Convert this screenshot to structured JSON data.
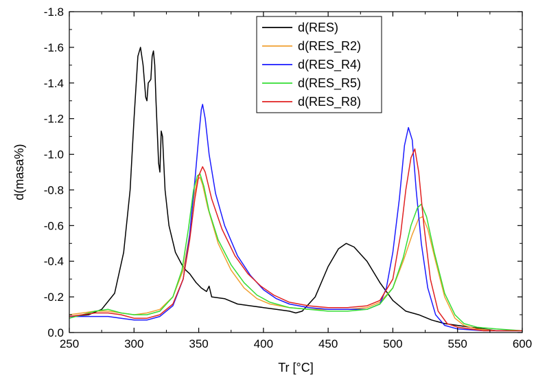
{
  "chart_data": {
    "type": "line",
    "xlabel": "Tr [°C]",
    "ylabel": "d(masa%)",
    "xlim": [
      250,
      600
    ],
    "ylim": [
      0.0,
      -1.8
    ],
    "y_axis_inverted": true,
    "grid": false,
    "legend_position": "top-center",
    "x_ticks": [
      250,
      300,
      350,
      400,
      450,
      500,
      550,
      600
    ],
    "x_tick_labels": [
      "250",
      "300",
      "350",
      "400",
      "450",
      "500",
      "550",
      "600"
    ],
    "y_ticks": [
      0,
      -0.2,
      -0.4,
      -0.6,
      -0.8,
      -1.0,
      -1.2,
      -1.4,
      -1.6,
      -1.8
    ],
    "y_tick_labels": [
      "0.0",
      "-0.2",
      "-0.4",
      "-0.6",
      "-0.8",
      "-1.0",
      "-1.2",
      "-1.4",
      "-1.6",
      "-1.8"
    ],
    "series": [
      {
        "name": "d(RES)",
        "color": "#000000",
        "points": [
          [
            250,
            -0.09
          ],
          [
            265,
            -0.1
          ],
          [
            275,
            -0.13
          ],
          [
            285,
            -0.22
          ],
          [
            292,
            -0.45
          ],
          [
            297,
            -0.8
          ],
          [
            300,
            -1.2
          ],
          [
            303,
            -1.55
          ],
          [
            305,
            -1.6
          ],
          [
            307,
            -1.5
          ],
          [
            309,
            -1.32
          ],
          [
            310,
            -1.3
          ],
          [
            311,
            -1.4
          ],
          [
            313,
            -1.42
          ],
          [
            314,
            -1.55
          ],
          [
            315,
            -1.58
          ],
          [
            316,
            -1.5
          ],
          [
            317,
            -1.3
          ],
          [
            319,
            -0.95
          ],
          [
            320,
            -0.9
          ],
          [
            321,
            -1.13
          ],
          [
            322,
            -1.1
          ],
          [
            324,
            -0.8
          ],
          [
            327,
            -0.6
          ],
          [
            332,
            -0.45
          ],
          [
            337,
            -0.38
          ],
          [
            340,
            -0.35
          ],
          [
            343,
            -0.33
          ],
          [
            348,
            -0.28
          ],
          [
            352,
            -0.25
          ],
          [
            356,
            -0.23
          ],
          [
            358,
            -0.26
          ],
          [
            360,
            -0.2
          ],
          [
            370,
            -0.19
          ],
          [
            380,
            -0.16
          ],
          [
            390,
            -0.15
          ],
          [
            400,
            -0.14
          ],
          [
            410,
            -0.13
          ],
          [
            420,
            -0.12
          ],
          [
            425,
            -0.11
          ],
          [
            430,
            -0.12
          ],
          [
            440,
            -0.2
          ],
          [
            450,
            -0.37
          ],
          [
            458,
            -0.47
          ],
          [
            464,
            -0.5
          ],
          [
            470,
            -0.48
          ],
          [
            480,
            -0.4
          ],
          [
            490,
            -0.28
          ],
          [
            500,
            -0.18
          ],
          [
            510,
            -0.12
          ],
          [
            520,
            -0.1
          ],
          [
            530,
            -0.07
          ],
          [
            540,
            -0.05
          ],
          [
            550,
            -0.04
          ],
          [
            560,
            -0.03
          ],
          [
            570,
            -0.02
          ],
          [
            580,
            -0.01
          ],
          [
            600,
            -0.01
          ]
        ]
      },
      {
        "name": "d(RES_R2)",
        "color": "#f0a030",
        "points": [
          [
            250,
            -0.1
          ],
          [
            260,
            -0.11
          ],
          [
            270,
            -0.12
          ],
          [
            280,
            -0.12
          ],
          [
            290,
            -0.11
          ],
          [
            300,
            -0.1
          ],
          [
            310,
            -0.11
          ],
          [
            320,
            -0.13
          ],
          [
            330,
            -0.2
          ],
          [
            338,
            -0.35
          ],
          [
            343,
            -0.55
          ],
          [
            346,
            -0.75
          ],
          [
            349,
            -0.86
          ],
          [
            351,
            -0.87
          ],
          [
            353,
            -0.83
          ],
          [
            357,
            -0.7
          ],
          [
            365,
            -0.5
          ],
          [
            375,
            -0.35
          ],
          [
            385,
            -0.25
          ],
          [
            395,
            -0.19
          ],
          [
            405,
            -0.16
          ],
          [
            420,
            -0.14
          ],
          [
            435,
            -0.13
          ],
          [
            450,
            -0.13
          ],
          [
            465,
            -0.13
          ],
          [
            480,
            -0.14
          ],
          [
            490,
            -0.17
          ],
          [
            500,
            -0.25
          ],
          [
            508,
            -0.4
          ],
          [
            515,
            -0.55
          ],
          [
            520,
            -0.64
          ],
          [
            523,
            -0.65
          ],
          [
            527,
            -0.58
          ],
          [
            533,
            -0.4
          ],
          [
            540,
            -0.2
          ],
          [
            548,
            -0.08
          ],
          [
            555,
            -0.04
          ],
          [
            565,
            -0.02
          ],
          [
            580,
            -0.01
          ],
          [
            600,
            -0.01
          ]
        ]
      },
      {
        "name": "d(RES_R4)",
        "color": "#1a1aff",
        "points": [
          [
            250,
            -0.09
          ],
          [
            260,
            -0.09
          ],
          [
            270,
            -0.09
          ],
          [
            280,
            -0.09
          ],
          [
            290,
            -0.08
          ],
          [
            300,
            -0.07
          ],
          [
            310,
            -0.07
          ],
          [
            320,
            -0.09
          ],
          [
            330,
            -0.15
          ],
          [
            338,
            -0.3
          ],
          [
            343,
            -0.55
          ],
          [
            347,
            -0.85
          ],
          [
            350,
            -1.1
          ],
          [
            352,
            -1.25
          ],
          [
            353,
            -1.28
          ],
          [
            355,
            -1.2
          ],
          [
            358,
            -1.0
          ],
          [
            363,
            -0.78
          ],
          [
            370,
            -0.6
          ],
          [
            380,
            -0.43
          ],
          [
            390,
            -0.32
          ],
          [
            400,
            -0.24
          ],
          [
            410,
            -0.19
          ],
          [
            420,
            -0.16
          ],
          [
            435,
            -0.14
          ],
          [
            450,
            -0.13
          ],
          [
            465,
            -0.13
          ],
          [
            480,
            -0.13
          ],
          [
            490,
            -0.16
          ],
          [
            495,
            -0.25
          ],
          [
            500,
            -0.45
          ],
          [
            505,
            -0.75
          ],
          [
            509,
            -1.05
          ],
          [
            512,
            -1.15
          ],
          [
            515,
            -1.08
          ],
          [
            518,
            -0.8
          ],
          [
            522,
            -0.5
          ],
          [
            527,
            -0.25
          ],
          [
            533,
            -0.1
          ],
          [
            540,
            -0.04
          ],
          [
            550,
            -0.02
          ],
          [
            570,
            -0.01
          ],
          [
            600,
            -0.01
          ]
        ]
      },
      {
        "name": "d(RES_R5)",
        "color": "#33dd33",
        "points": [
          [
            250,
            -0.08
          ],
          [
            260,
            -0.1
          ],
          [
            270,
            -0.12
          ],
          [
            280,
            -0.13
          ],
          [
            290,
            -0.11
          ],
          [
            300,
            -0.1
          ],
          [
            310,
            -0.1
          ],
          [
            320,
            -0.12
          ],
          [
            330,
            -0.2
          ],
          [
            337,
            -0.35
          ],
          [
            342,
            -0.58
          ],
          [
            346,
            -0.8
          ],
          [
            349,
            -0.88
          ],
          [
            351,
            -0.89
          ],
          [
            354,
            -0.82
          ],
          [
            358,
            -0.68
          ],
          [
            365,
            -0.52
          ],
          [
            375,
            -0.38
          ],
          [
            385,
            -0.28
          ],
          [
            395,
            -0.21
          ],
          [
            405,
            -0.17
          ],
          [
            420,
            -0.14
          ],
          [
            435,
            -0.13
          ],
          [
            450,
            -0.12
          ],
          [
            465,
            -0.12
          ],
          [
            480,
            -0.13
          ],
          [
            490,
            -0.16
          ],
          [
            500,
            -0.25
          ],
          [
            508,
            -0.42
          ],
          [
            514,
            -0.6
          ],
          [
            519,
            -0.7
          ],
          [
            522,
            -0.72
          ],
          [
            526,
            -0.65
          ],
          [
            532,
            -0.45
          ],
          [
            540,
            -0.22
          ],
          [
            548,
            -0.1
          ],
          [
            555,
            -0.05
          ],
          [
            565,
            -0.03
          ],
          [
            580,
            -0.02
          ],
          [
            600,
            -0.01
          ]
        ]
      },
      {
        "name": "d(RES_R8)",
        "color": "#e02020",
        "points": [
          [
            250,
            -0.09
          ],
          [
            260,
            -0.1
          ],
          [
            270,
            -0.11
          ],
          [
            280,
            -0.11
          ],
          [
            290,
            -0.1
          ],
          [
            300,
            -0.08
          ],
          [
            310,
            -0.08
          ],
          [
            320,
            -0.1
          ],
          [
            330,
            -0.16
          ],
          [
            338,
            -0.3
          ],
          [
            343,
            -0.52
          ],
          [
            347,
            -0.75
          ],
          [
            350,
            -0.88
          ],
          [
            353,
            -0.93
          ],
          [
            355,
            -0.9
          ],
          [
            360,
            -0.75
          ],
          [
            368,
            -0.58
          ],
          [
            378,
            -0.43
          ],
          [
            388,
            -0.33
          ],
          [
            398,
            -0.26
          ],
          [
            408,
            -0.21
          ],
          [
            420,
            -0.17
          ],
          [
            435,
            -0.15
          ],
          [
            450,
            -0.14
          ],
          [
            465,
            -0.14
          ],
          [
            480,
            -0.15
          ],
          [
            490,
            -0.18
          ],
          [
            500,
            -0.3
          ],
          [
            506,
            -0.55
          ],
          [
            510,
            -0.8
          ],
          [
            514,
            -0.98
          ],
          [
            517,
            -1.03
          ],
          [
            520,
            -0.9
          ],
          [
            524,
            -0.6
          ],
          [
            529,
            -0.3
          ],
          [
            535,
            -0.12
          ],
          [
            542,
            -0.05
          ],
          [
            550,
            -0.03
          ],
          [
            570,
            -0.01
          ],
          [
            600,
            -0.01
          ]
        ]
      }
    ]
  }
}
